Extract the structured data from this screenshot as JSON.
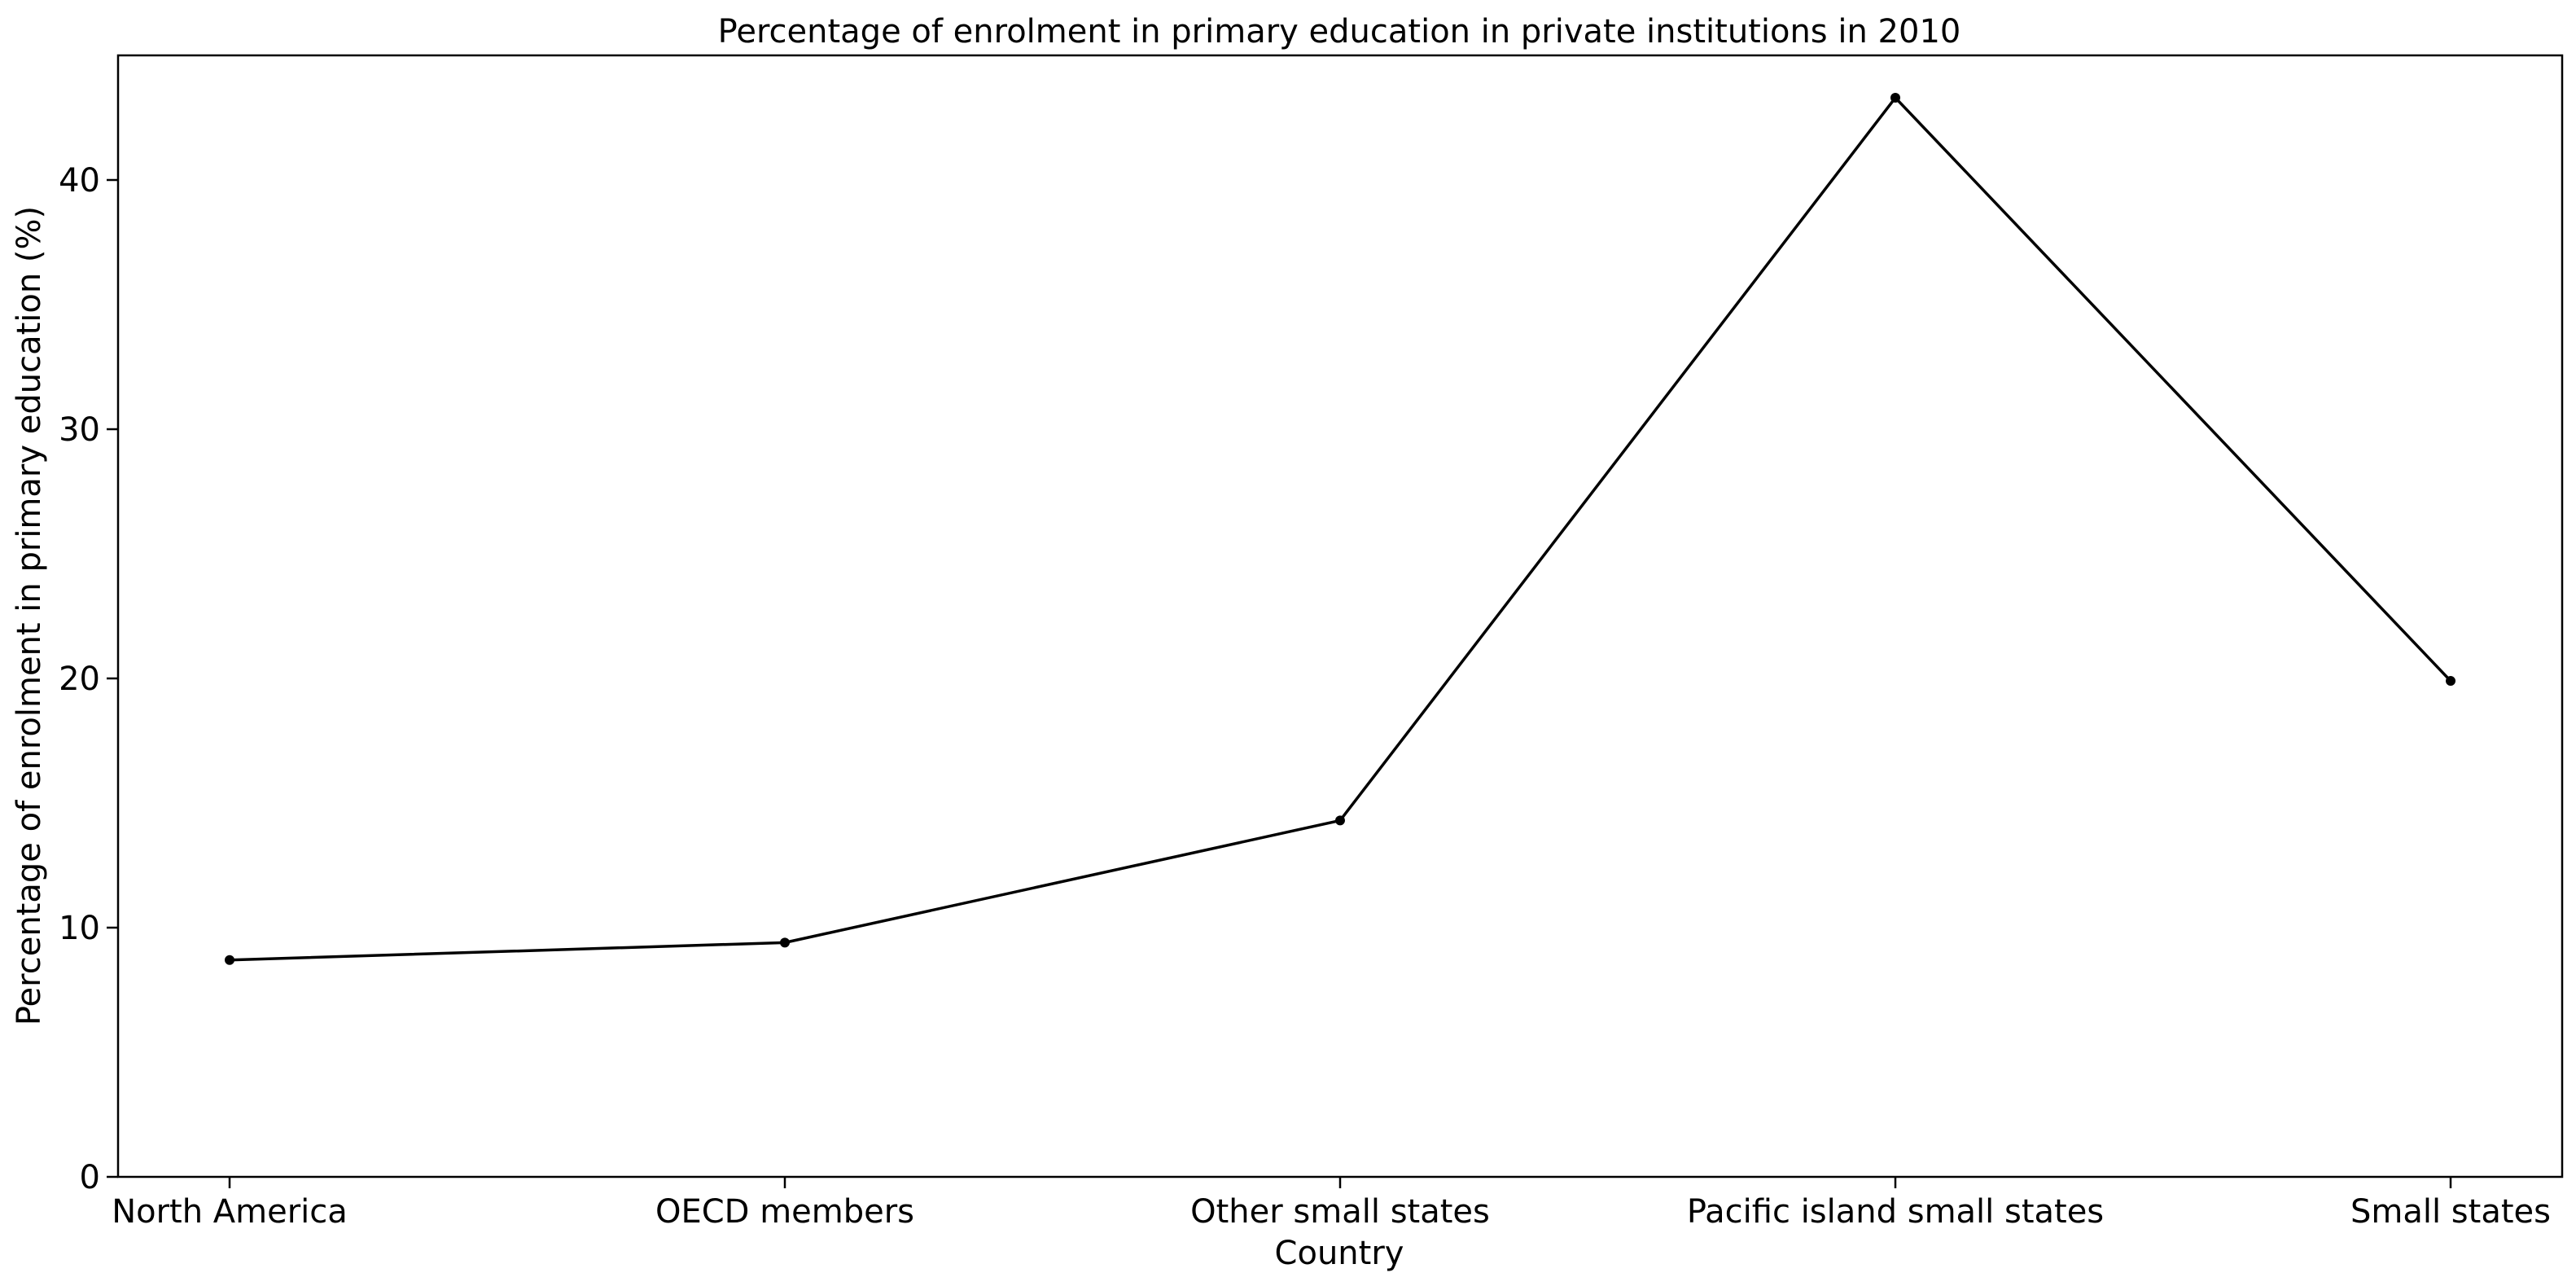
{
  "chart_data": {
    "type": "line",
    "title": "Percentage of enrolment in primary education in private institutions in 2010",
    "xlabel": "Country",
    "ylabel": "Percentage of enrolment in primary education (%)",
    "categories": [
      "North America",
      "OECD members",
      "Other small states",
      "Pacific island small states",
      "Small states"
    ],
    "series": [
      {
        "values": [
          8.7,
          9.4,
          14.3,
          43.3,
          19.9
        ],
        "color": "#000000"
      }
    ],
    "ylim": [
      0,
      45
    ],
    "yticks": [
      0,
      10,
      20,
      30,
      40
    ],
    "grid": false,
    "legend": "none"
  }
}
